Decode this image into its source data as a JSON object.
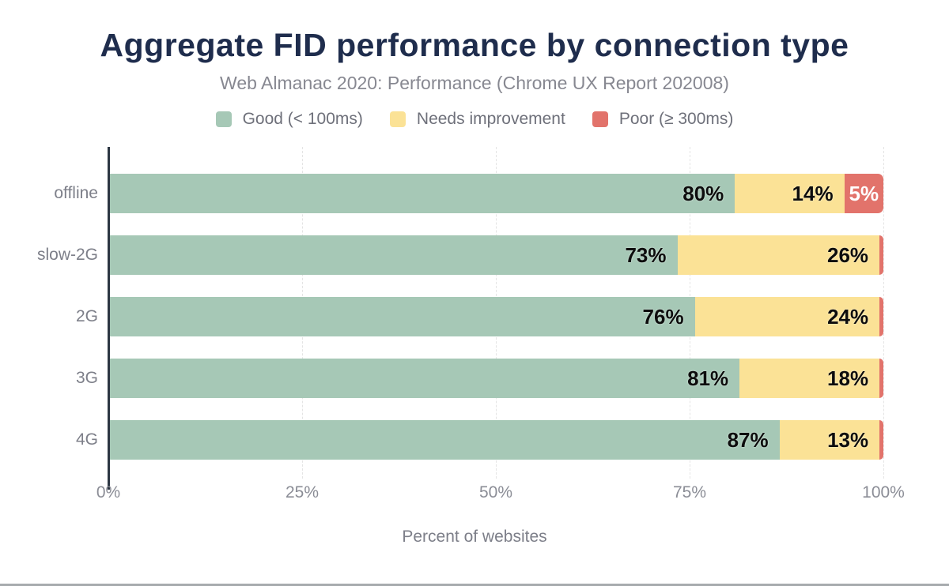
{
  "chart_data": {
    "type": "bar",
    "orientation": "horizontal",
    "stacked": true,
    "title": "Aggregate FID performance by connection type",
    "subtitle": "Web Almanac 2020: Performance (Chrome UX Report 202008)",
    "xlabel": "Percent of websites",
    "ylabel": "",
    "xlim": [
      0,
      100
    ],
    "x_ticks": [
      {
        "label": "0%",
        "value": 0
      },
      {
        "label": "25%",
        "value": 25
      },
      {
        "label": "50%",
        "value": 50
      },
      {
        "label": "75%",
        "value": 75
      },
      {
        "label": "100%",
        "value": 100
      }
    ],
    "grid": "vertical-dashed",
    "legend_position": "top",
    "categories": [
      "offline",
      "slow-2G",
      "2G",
      "3G",
      "4G"
    ],
    "series": [
      {
        "id": "good",
        "name": "Good (< 100ms)",
        "color": "#a6c8b6",
        "values": [
          80,
          73,
          76,
          81,
          87
        ],
        "labels": [
          "80%",
          "73%",
          "76%",
          "81%",
          "87%"
        ],
        "label_color": "#0d0d0d"
      },
      {
        "id": "needs-improvement",
        "name": "Needs improvement",
        "color": "#fbe296",
        "values": [
          14,
          26,
          24,
          18,
          13
        ],
        "labels": [
          "14%",
          "26%",
          "24%",
          "18%",
          "13%"
        ],
        "label_color": "#0d0d0d"
      },
      {
        "id": "poor",
        "name": "Poor (≥ 300ms)",
        "color": "#e2736b",
        "values": [
          5,
          0.5,
          0.5,
          0.5,
          0.5
        ],
        "labels": [
          "5%",
          "",
          "",
          "",
          ""
        ],
        "label_color": "#ffffff"
      }
    ]
  },
  "layout_colors": {
    "title": "#1f2d4d",
    "subtitle": "#878891",
    "axis_line": "#2c3642",
    "grid_line": "#e4e4e4",
    "tick_text": "#8b8d96"
  }
}
